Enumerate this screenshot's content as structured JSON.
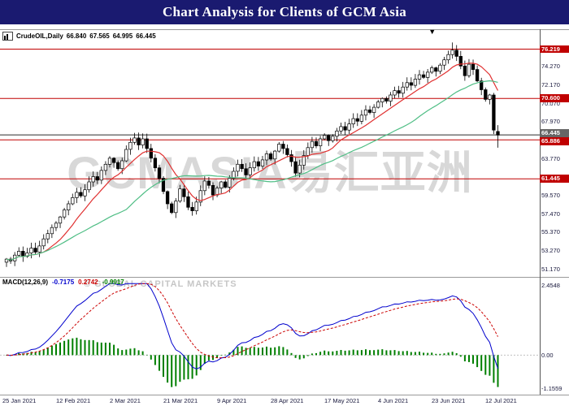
{
  "title_bar": {
    "title": "Chart Analysis for Clients of GCM Asia"
  },
  "colors": {
    "title_bg": "#1a1a70",
    "accent_red": "#c00000",
    "current_price_bg": "#666666",
    "candle_up": "#ffffff",
    "candle_down": "#000000",
    "ma_fast": "#e03131",
    "ma_slow": "#4fbe85",
    "macd_main": "#0000cd",
    "macd_signal": "#cc0000",
    "macd_hist": "#007f00",
    "watermark": "#8f8f8f",
    "axis_text": "#18183c"
  },
  "legend": {
    "symbol": "CrudeOIL,Daily",
    "open": "66.840",
    "high": "67.565",
    "low": "64.995",
    "close": "66.445"
  },
  "watermark": {
    "main": "GCMASIA易汇亚洲",
    "sub": "© GLOBAL CAPITAL MARKETS"
  },
  "macd_legend": {
    "label": "MACD(12,26,9)",
    "main": "-0.7175",
    "signal": "0.2742",
    "histogram": "-0.9917"
  },
  "chart_data": {
    "type": "candlestick",
    "title": "CrudeOIL Daily with MACD(12,26,9)",
    "symbol": "CrudeOIL",
    "timeframe": "Daily",
    "last_bar_ohlc": {
      "open": 66.84,
      "high": 67.565,
      "low": 64.995,
      "close": 66.445
    },
    "x_labels": [
      "25 Jan 2021",
      "12 Feb 2021",
      "2 Mar 2021",
      "21 Mar 2021",
      "9 Apr 2021",
      "28 Apr 2021",
      "17 May 2021",
      "4 Jun 2021",
      "23 Jun 2021",
      "12 Jul 2021"
    ],
    "closes": [
      52.3,
      52.1,
      52.75,
      53.2,
      52.6,
      53.0,
      53.55,
      53.1,
      53.8,
      54.6,
      55.2,
      55.9,
      56.4,
      57.1,
      57.9,
      58.6,
      59.3,
      59.9,
      59.5,
      60.2,
      61.1,
      61.7,
      61.3,
      62.4,
      63.1,
      63.8,
      63.3,
      62.6,
      63.5,
      64.8,
      65.6,
      66.1,
      65.3,
      66.0,
      64.9,
      63.8,
      62.7,
      61.5,
      60.0,
      58.6,
      57.6,
      58.9,
      60.3,
      59.4,
      58.2,
      57.8,
      58.8,
      60.1,
      61.2,
      60.7,
      59.6,
      60.4,
      61.1,
      60.5,
      61.5,
      62.3,
      63.1,
      62.6,
      61.9,
      62.7,
      63.4,
      62.9,
      63.6,
      64.3,
      63.7,
      64.6,
      65.4,
      64.9,
      64.2,
      63.4,
      62.1,
      63.0,
      64.1,
      65.0,
      65.7,
      65.2,
      66.0,
      66.4,
      65.8,
      66.3,
      66.9,
      67.4,
      67.0,
      67.7,
      68.3,
      68.0,
      68.7,
      69.3,
      69.0,
      69.6,
      70.2,
      70.6,
      70.3,
      71.0,
      71.5,
      71.2,
      71.9,
      72.4,
      72.1,
      72.8,
      73.3,
      73.0,
      73.6,
      74.1,
      73.7,
      74.4,
      75.0,
      75.6,
      76.1,
      75.4,
      74.3,
      73.2,
      74.5,
      73.9,
      72.6,
      71.6,
      70.5,
      71.0,
      67.0,
      66.445
    ],
    "bar_overrides": {
      "108": {
        "high": 76.98
      },
      "118": {
        "low": 66.55
      },
      "119": {
        "open": 66.84,
        "high": 67.565,
        "low": 64.995,
        "close": 66.445
      }
    },
    "y_axis": {
      "min": 50.55,
      "max": 77.75,
      "ticks": [
        74.27,
        72.17,
        70.07,
        67.97,
        63.77,
        59.57,
        57.47,
        55.37,
        53.27,
        51.17
      ]
    },
    "levels": [
      {
        "value": 76.219,
        "role": "resistance"
      },
      {
        "value": 70.6,
        "role": "resistance"
      },
      {
        "value": 65.886,
        "role": "support",
        "label_dy": 2
      },
      {
        "value": 61.445,
        "role": "support"
      }
    ],
    "current_price": {
      "value": 66.445,
      "label_dy": -2
    },
    "moving_averages": [
      {
        "type": "sma",
        "period": 10,
        "color": "#e03131"
      },
      {
        "type": "sma",
        "period": 30,
        "color": "#4fbe85"
      }
    ],
    "macd": {
      "label": "MACD(12,26,9)",
      "fast": 12,
      "slow": 26,
      "signal_period": 9,
      "current_main": -0.7175,
      "current_signal": 0.2742,
      "current_histogram": -0.9917,
      "axis_ticks": [
        {
          "text": "2.4548",
          "value": 2.4548
        },
        {
          "text": "0.00",
          "value": 0
        },
        {
          "text": "-1.1559",
          "value": -1.1559
        }
      ]
    },
    "annotations": [
      {
        "glyph": "▼",
        "bar": 103
      }
    ]
  }
}
